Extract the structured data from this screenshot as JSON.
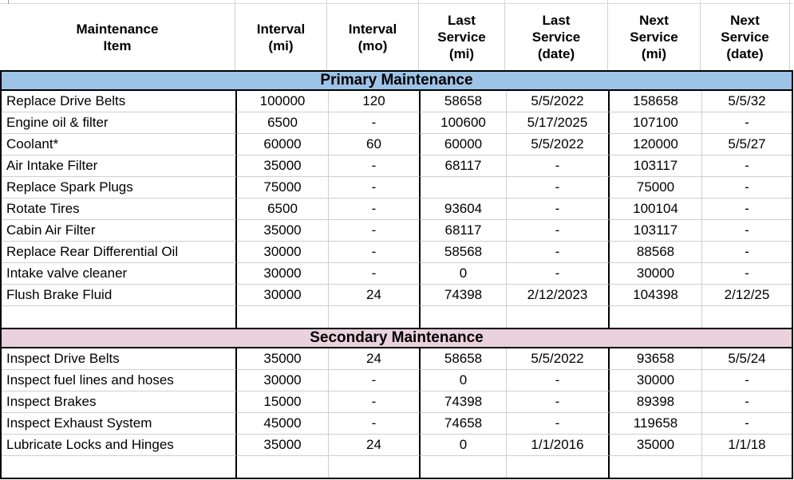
{
  "table": {
    "columns": [
      {
        "label": "Maintenance\nItem"
      },
      {
        "label": "Interval\n(mi)"
      },
      {
        "label": "Interval\n(mo)"
      },
      {
        "label": "Last\nService\n(mi)"
      },
      {
        "label": "Last\nService\n(date)"
      },
      {
        "label": "Next\nService\n(mi)"
      },
      {
        "label": "Next\nService\n(date)"
      }
    ],
    "sections": [
      {
        "title": "Primary Maintenance",
        "color": "#9DC3E6",
        "rows": [
          [
            "Replace Drive Belts",
            "100000",
            "120",
            "58658",
            "5/5/2022",
            "158658",
            "5/5/32"
          ],
          [
            "Engine oil & filter",
            "6500",
            "-",
            "100600",
            "5/17/2025",
            "107100",
            "-"
          ],
          [
            "Coolant*",
            "60000",
            "60",
            "60000",
            "5/5/2022",
            "120000",
            "5/5/27"
          ],
          [
            "Air Intake Filter",
            "35000",
            "-",
            "68117",
            "-",
            "103117",
            "-"
          ],
          [
            "Replace Spark Plugs",
            "75000",
            "-",
            "",
            "-",
            "75000",
            "-"
          ],
          [
            "Rotate Tires",
            "6500",
            "-",
            "93604",
            "-",
            "100104",
            "-"
          ],
          [
            "Cabin Air Filter",
            "35000",
            "-",
            "68117",
            "-",
            "103117",
            "-"
          ],
          [
            "Replace Rear Differential Oil",
            "30000",
            "-",
            "58568",
            "-",
            "88568",
            "-"
          ],
          [
            "Intake valve cleaner",
            "30000",
            "-",
            "0",
            "-",
            "30000",
            "-"
          ],
          [
            "Flush Brake Fluid",
            "30000",
            "24",
            "74398",
            "2/12/2023",
            "104398",
            "2/12/25"
          ],
          [
            "",
            "",
            "",
            "",
            "",
            "",
            ""
          ]
        ]
      },
      {
        "title": "Secondary Maintenance",
        "color": "#EAD1DC",
        "rows": [
          [
            "Inspect Drive Belts",
            "35000",
            "24",
            "58658",
            "5/5/2022",
            "93658",
            "5/5/24"
          ],
          [
            "Inspect fuel lines and hoses",
            "30000",
            "-",
            "0",
            "-",
            "30000",
            "-"
          ],
          [
            "Inspect Brakes",
            "15000",
            "-",
            "74398",
            "-",
            "89398",
            "-"
          ],
          [
            "Inspect Exhaust System",
            "45000",
            "-",
            "74658",
            "-",
            "119658",
            "-"
          ],
          [
            "Lubricate Locks and Hinges",
            "35000",
            "24",
            "0",
            "1/1/2016",
            "35000",
            "1/1/18"
          ],
          [
            "",
            "",
            "",
            "",
            "",
            "",
            ""
          ]
        ]
      }
    ]
  },
  "colors": {
    "primary_section": "#9DC3E6",
    "secondary_section": "#EAD1DC",
    "gridline": "#CFCFCF",
    "border": "#000000"
  }
}
